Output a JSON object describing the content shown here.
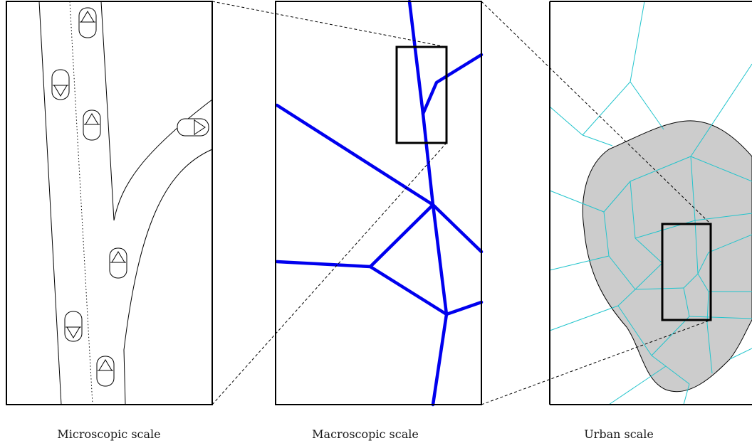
{
  "captions": {
    "microscopic": "Microscopic scale",
    "macroscopic": "Macroscopic scale",
    "urban": "Urban scale"
  },
  "colors": {
    "frame": "#000000",
    "road": "#0000ee",
    "urban_network": "#22c4cc",
    "urban_area": "#cccccc"
  }
}
